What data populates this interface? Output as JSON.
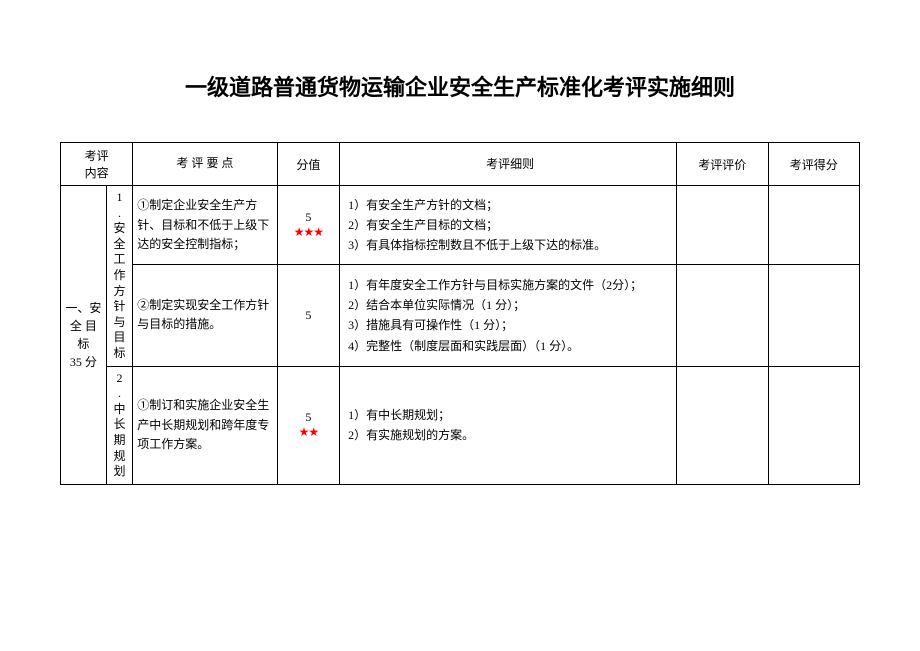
{
  "title": "一级道路普通货物运输企业安全生产标准化考评实施细则",
  "headers": {
    "category": "考评\n内容",
    "points": "考 评 要 点",
    "score": "分值",
    "detail": "考评细则",
    "evaluation": "考评评价",
    "result": "考评得分"
  },
  "category": {
    "label": "一、安\n全 目\n标\n35 分"
  },
  "subcategories": [
    {
      "label": "1\n.\n安\n全\n工\n作\n方\n针\n与\n目\n标",
      "rows": [
        {
          "point": "①制定企业安全生产方针、目标和不低于上级下达的安全控制指标；",
          "score": "5",
          "stars": "★★★",
          "detail": "1）有安全生产方针的文档；\n2）有安全生产目标的文档；\n3）有具体指标控制数且不低于上级下达的标准。"
        },
        {
          "point": "②制定实现安全工作方针与目标的措施。",
          "score": "5",
          "stars": "",
          "detail": "1）有年度安全工作方针与目标实施方案的文件（2分）；\n2）结合本单位实际情况（1 分）；\n3）措施具有可操作性（1 分）；\n4）完整性（制度层面和实践层面）（1 分）。"
        }
      ]
    },
    {
      "label": "2\n.\n中\n长\n期\n规\n划",
      "rows": [
        {
          "point": "①制订和实施企业安全生产中长期规划和跨年度专项工作方案。",
          "score": "5",
          "stars": "★★",
          "detail": "1）有中长期规划；\n2）有实施规划的方案。"
        }
      ]
    }
  ]
}
